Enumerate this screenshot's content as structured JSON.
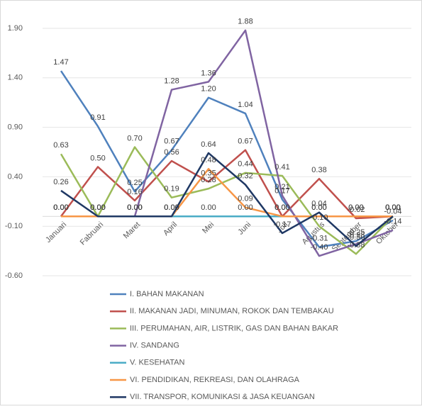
{
  "chart_data": {
    "type": "line",
    "categories": [
      "Januari",
      "Fabruari",
      "Maret",
      "April",
      "Mei",
      "Juni",
      "Juli",
      "Agustus",
      "September",
      "Oktober"
    ],
    "ylim": [
      -0.6,
      1.9
    ],
    "yticks": [
      {
        "value": -0.6,
        "label": "-0.60"
      },
      {
        "value": -0.1,
        "label": "-0.10"
      },
      {
        "value": 0.4,
        "label": "0.40"
      },
      {
        "value": 0.9,
        "label": "0.90"
      },
      {
        "value": 1.4,
        "label": "1.40"
      },
      {
        "value": 1.9,
        "label": "1.90"
      }
    ],
    "grid": true,
    "legend": "bottom",
    "series": [
      {
        "name": "I. BAHAN MAKANAN",
        "color": "#4f81bd",
        "values": [
          1.47,
          0.91,
          0.25,
          0.67,
          1.2,
          1.04,
          0.17,
          -0.31,
          -0.25,
          -0.04
        ],
        "value_labels": [
          "1.47",
          "0.91",
          "0.25",
          "0.67",
          "1.20",
          "1.04",
          "0.17",
          "-0.31",
          "-0.25",
          "-0.04"
        ]
      },
      {
        "name": "II. MAKANAN JADI, MINUMAN, ROKOK DAN TEMBAKAU",
        "color": "#c0504d",
        "values": [
          0,
          0.5,
          0.16,
          0.56,
          0.35,
          0.67,
          0,
          0.38,
          -0.02,
          0
        ],
        "value_labels": [
          "0.00",
          "0.50",
          "0.16",
          "0.56",
          "0.35",
          "0.67",
          "0.00",
          "0.38",
          "-0.02",
          "0.00"
        ]
      },
      {
        "name": "III. PERUMAHAN, AIR, LISTRIK, GAS DAN BAHAN BAKAR",
        "color": "#9bbb59",
        "values": [
          0.63,
          0,
          0.7,
          0.19,
          0.28,
          0.44,
          0.41,
          -0.1,
          -0.38,
          0
        ],
        "value_labels": [
          "0.63",
          "0.00",
          "0.70",
          "0.19",
          "0.28",
          "0.44",
          "0.41",
          "-0.10",
          "-0.38",
          "0.00"
        ]
      },
      {
        "name": "IV. SANDANG",
        "color": "#8064a2",
        "values": [
          0,
          0,
          0,
          1.28,
          1.36,
          1.88,
          0.21,
          -0.4,
          -0.28,
          -0.14
        ],
        "value_labels": [
          "0.00",
          "0.00",
          "0.00",
          "1.28",
          "1.36",
          "1.88",
          "0.21",
          "-0.40",
          "-0.28",
          "-0.14"
        ]
      },
      {
        "name": "V. KESEHATAN",
        "color": "#4bacc6",
        "values": [
          0,
          0,
          0,
          0,
          0,
          0,
          0,
          0,
          0,
          0
        ],
        "value_labels": [
          "0.00",
          "0.00",
          "0.00",
          "0.00",
          "0.00",
          "0.00",
          "0.00",
          "0.00",
          "0.00",
          "0.00"
        ]
      },
      {
        "name": "VI. PENDIDIKAN, REKREASI, DAN OLAHRAGA",
        "color": "#f79646",
        "values": [
          0,
          0,
          0,
          0,
          0.48,
          0.09,
          0,
          0,
          0,
          0
        ],
        "value_labels": [
          "0.00",
          "0.00",
          "0.00",
          "0.00",
          "0.48",
          "0.09",
          "0.00",
          "0.00",
          "0.00",
          "0.00"
        ]
      },
      {
        "name": "VII. TRANSPOR, KOMUNIKASI & JASA KEUANGAN",
        "color": "#1f3864",
        "values": [
          0.26,
          0,
          0,
          0,
          0.64,
          0.32,
          -0.17,
          0.04,
          -0.3,
          0
        ],
        "value_labels": [
          "0.26",
          "0.00",
          "0.00",
          "0.00",
          "0.64",
          "0.32",
          "-0.17",
          "0.04",
          "-0.30",
          "0.00"
        ]
      }
    ]
  }
}
